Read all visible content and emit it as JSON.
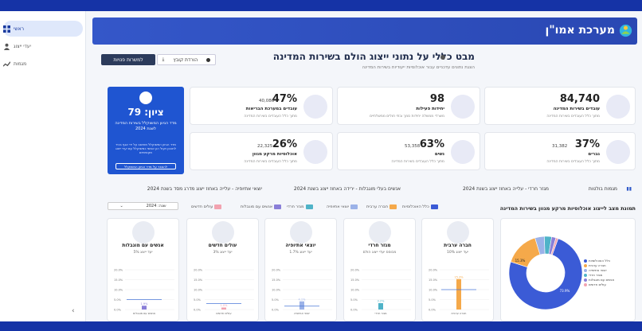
{
  "app": {
    "title": "מערכת אמו\"ן"
  },
  "sidebar": {
    "items": [
      {
        "label": "ראשי"
      },
      {
        "label": "יעדי ייצוג"
      },
      {
        "label": "מגמות"
      }
    ],
    "collapse_label": "‹"
  },
  "header": {
    "title": "מבט כללי על נתוני ייצוג הולם בשירות המדינה",
    "subtitle": "הצגת נתונים עדכניים עבור אוכלוסיות ייעודיות בשירות המדינה",
    "btn_employers": "למשרות פנויות",
    "btn_download": "הורדת קובץ"
  },
  "score_card": {
    "title": "ציון: 79",
    "subtitle": "מדד הגיוון המשוקלל בשירות המדינה לשנת 2024",
    "desc": "מדד הגיוון המשוקלל מחושב על ידי אגף בכיר לתכנון ויעול הון אנושי כמשוקלל עם יעדי ייצוג תקופתיים",
    "link": "להסבר על מדד הגיוון המשוקלל"
  },
  "stats": [
    {
      "big": "84,740",
      "small": "",
      "label": "עובדים בשירות המדינה",
      "sub": "מתוך כלל העובדים בשירות המדינה"
    },
    {
      "big": "98",
      "small": "",
      "label": "יחידות פעילות",
      "sub": "משרדי ממשלה יחידות סמך ובתי חולים ממשלתיים"
    },
    {
      "big": "47%",
      "small": "40,086",
      "label": "עובדים במערכת הבריאות",
      "sub": "מתוך כלל העובדים בשירות המדינה"
    },
    {
      "big": "37%",
      "small": "31,382",
      "label": "גברים",
      "sub": "מתוך כלל העובדים בשירות המדינה"
    },
    {
      "big": "63%",
      "small": "53,358",
      "label": "נשים",
      "sub": "מתוך כלל העובדים בשירות המדינה"
    },
    {
      "big": "26%",
      "small": "22,325",
      "label": "אוכלוסיות מרקע מגוון",
      "sub": "מתוך כלל העובדים בשירות המדינה"
    }
  ],
  "trends": {
    "label": "מגמות בולטות",
    "items": [
      "מגזר חרדי - עלייה באחוז ייצוג בשנת 2024",
      "אנשים בעלי מוגבלות - ירידה באחוז ייצוג בשנת 2024",
      "יוצאי אתיופיה - עלייה באחוז ייצוג מדרג מסד בשנת 2024"
    ]
  },
  "section": {
    "title": "תמונת מצב לייצוג אוכלוסיות מרקע מגוון בשירות המדינה"
  },
  "year_select": {
    "label": "שנה: 2024"
  },
  "legend": [
    {
      "label": "כלל האוכלוסיות",
      "color": "#3b5bd6"
    },
    {
      "label": "חברה ערבית",
      "color": "#f5a94a"
    },
    {
      "label": "יוצאי אתיופיה",
      "color": "#9bb2e8"
    },
    {
      "label": "מגזר חרדי",
      "color": "#4fb3c8"
    },
    {
      "label": "אנשים עם מוגבלות",
      "color": "#8a7fd8"
    },
    {
      "label": "עולים חדשים",
      "color": "#f2a3b0"
    }
  ],
  "mini_cards": [
    {
      "title": "חברה ערבית",
      "sub": "יעד ייצוג 10%",
      "value": "15.3%"
    },
    {
      "title": "מגזר חרדי",
      "sub": "מבוסס יעדי ייצוג הולם",
      "value": "3.2%"
    },
    {
      "title": "יוצאי אתיופיה",
      "sub": "יעד ייצוג 1.7%",
      "value": "4.1%"
    },
    {
      "title": "עולים חדשים",
      "sub": "יעד ייצוג 3%",
      "value": "1.0%"
    },
    {
      "title": "אנשים עם מוגבלות",
      "sub": "יעד ייצוג 5%",
      "value": "1.9%"
    }
  ],
  "mini_axis": [
    "20.0%",
    "15.0%",
    "10.0%",
    "5.0%",
    "0.0%"
  ],
  "donut": {
    "labels": [
      "כלל האוכלוסיות",
      "חברה ערבית",
      "יוצאי אתיופיה",
      "מגזר חרדי",
      "אנשים עם מוגבלות",
      "עולים חדשים"
    ],
    "center_labels": [
      "73.9%",
      "15.3%"
    ]
  },
  "chart_data": [
    {
      "type": "bar",
      "categories": [
        "חברה ערבית",
        "מגזר חרדי",
        "יוצאי אתיופיה",
        "עולים חדשים",
        "אנשים עם מוגבלות"
      ],
      "values": [
        15.3,
        3.2,
        4.1,
        1.0,
        1.9
      ],
      "targets": [
        10,
        null,
        1.7,
        3,
        5
      ],
      "ylim": [
        0,
        20
      ]
    },
    {
      "type": "pie",
      "categories": [
        "כלל האוכלוסיות",
        "חברה ערבית",
        "יוצאי אתיופיה",
        "מגזר חרדי",
        "אנשים עם מוגבלות",
        "עולים חדשים"
      ],
      "values": [
        73.9,
        15.3,
        4.1,
        3.2,
        1.9,
        1.0
      ]
    }
  ]
}
